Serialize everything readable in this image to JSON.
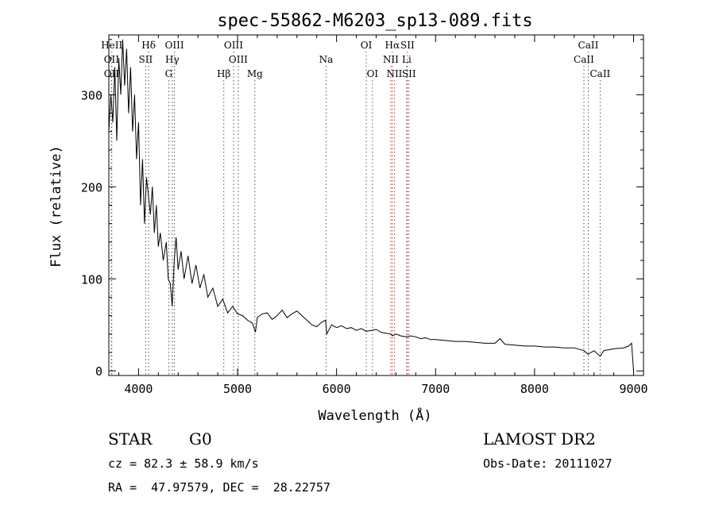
{
  "chart_data": {
    "type": "line",
    "title": "spec-55862-M6203_sp13-089.fits",
    "xlabel": "Wavelength (Å)",
    "ylabel": "Flux (relative)",
    "xlim": [
      3700,
      9100
    ],
    "ylim": [
      -5,
      365
    ],
    "xticks": [
      4000,
      5000,
      6000,
      7000,
      8000,
      9000
    ],
    "yticks": [
      0,
      100,
      200,
      300
    ],
    "grid": false,
    "series": [
      {
        "color": "#000000",
        "x": [
          3700,
          3720,
          3740,
          3760,
          3780,
          3800,
          3820,
          3840,
          3860,
          3880,
          3900,
          3920,
          3940,
          3960,
          3980,
          4000,
          4020,
          4040,
          4060,
          4080,
          4100,
          4120,
          4140,
          4160,
          4180,
          4200,
          4220,
          4250,
          4280,
          4300,
          4320,
          4340,
          4360,
          4380,
          4400,
          4430,
          4460,
          4500,
          4540,
          4580,
          4620,
          4660,
          4700,
          4750,
          4800,
          4850,
          4900,
          4950,
          5000,
          5050,
          5100,
          5150,
          5180,
          5200,
          5250,
          5300,
          5350,
          5400,
          5450,
          5500,
          5550,
          5600,
          5650,
          5700,
          5750,
          5800,
          5850,
          5890,
          5900,
          5950,
          6000,
          6050,
          6100,
          6150,
          6200,
          6250,
          6300,
          6350,
          6400,
          6450,
          6500,
          6550,
          6563,
          6600,
          6650,
          6700,
          6750,
          6800,
          6850,
          6900,
          6950,
          7000,
          7100,
          7200,
          7300,
          7400,
          7500,
          7600,
          7650,
          7700,
          7800,
          7900,
          8000,
          8100,
          8200,
          8300,
          8400,
          8500,
          8540,
          8600,
          8662,
          8700,
          8800,
          8900,
          8950,
          8980,
          9000
        ],
        "y": [
          260,
          300,
          270,
          330,
          250,
          340,
          300,
          360,
          310,
          350,
          280,
          330,
          260,
          300,
          230,
          270,
          180,
          230,
          160,
          210,
          190,
          170,
          200,
          150,
          180,
          135,
          150,
          120,
          140,
          100,
          95,
          70,
          120,
          145,
          110,
          130,
          100,
          125,
          95,
          115,
          90,
          105,
          80,
          90,
          70,
          78,
          63,
          70,
          62,
          60,
          55,
          52,
          42,
          58,
          62,
          63,
          56,
          60,
          66,
          58,
          62,
          65,
          60,
          55,
          50,
          48,
          53,
          55,
          40,
          50,
          47,
          49,
          46,
          47,
          44,
          46,
          43,
          44,
          45,
          42,
          41,
          40,
          38,
          40,
          38,
          37,
          38,
          37,
          35,
          36,
          34,
          34,
          33,
          32,
          32,
          31,
          30,
          30,
          35,
          29,
          28,
          27,
          27,
          26,
          26,
          25,
          25,
          22,
          18,
          22,
          16,
          22,
          24,
          25,
          27,
          30,
          0
        ]
      }
    ],
    "line_markers": [
      {
        "label": "HeII",
        "wave": 3730,
        "row": 1,
        "color": "#555555"
      },
      {
        "label": "OII",
        "wave": 3727,
        "row": 2,
        "color": "#555555"
      },
      {
        "label": "OII",
        "wave": 3727,
        "row": 3,
        "color": "#555555"
      },
      {
        "label": "Hδ",
        "wave": 4102,
        "row": 1,
        "color": "#555555"
      },
      {
        "label": "SII",
        "wave": 4072,
        "row": 2,
        "color": "#555555"
      },
      {
        "label": "OIII",
        "wave": 4363,
        "row": 1,
        "color": "#555555"
      },
      {
        "label": "Hγ",
        "wave": 4340,
        "row": 2,
        "color": "#555555"
      },
      {
        "label": "G",
        "wave": 4305,
        "row": 3,
        "color": "#555555"
      },
      {
        "label": "OIII",
        "wave": 4959,
        "row": 1,
        "color": "#555555"
      },
      {
        "label": "OIII",
        "wave": 5007,
        "row": 2,
        "color": "#555555"
      },
      {
        "label": "Hβ",
        "wave": 4861,
        "row": 3,
        "color": "#555555"
      },
      {
        "label": "Mg",
        "wave": 5175,
        "row": 3,
        "color": "#555555"
      },
      {
        "label": "Na",
        "wave": 5894,
        "row": 2,
        "color": "#555555"
      },
      {
        "label": "OI",
        "wave": 6300,
        "row": 1,
        "color": "#555555"
      },
      {
        "label": "OI",
        "wave": 6363,
        "row": 3,
        "color": "#555555"
      },
      {
        "label": "Hα",
        "wave": 6563,
        "row": 1,
        "color": "#cc3333"
      },
      {
        "label": "SII",
        "wave": 6716,
        "row": 1,
        "color": "#cc3333"
      },
      {
        "label": "NII",
        "wave": 6548,
        "row": 2,
        "color": "#cc3333"
      },
      {
        "label": "Li",
        "wave": 6708,
        "row": 2,
        "color": "#555555"
      },
      {
        "label": "NII",
        "wave": 6584,
        "row": 3,
        "color": "#cc3333"
      },
      {
        "label": "SII",
        "wave": 6731,
        "row": 3,
        "color": "#cc3333"
      },
      {
        "label": "CaII",
        "wave": 8542,
        "row": 1,
        "color": "#555555"
      },
      {
        "label": "CaII",
        "wave": 8498,
        "row": 2,
        "color": "#555555"
      },
      {
        "label": "CaII",
        "wave": 8662,
        "row": 3,
        "color": "#555555"
      }
    ]
  },
  "info": {
    "class_label": "STAR",
    "subclass": "G0",
    "survey": "LAMOST DR2",
    "cz": "cz = 82.3 ± 58.9 km/s",
    "obs_date": "Obs-Date: 20111027",
    "coords": "RA =  47.97579, DEC =  28.22757"
  }
}
